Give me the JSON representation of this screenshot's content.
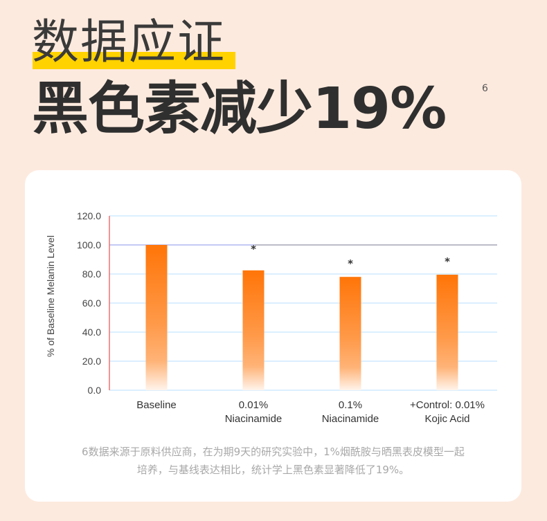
{
  "header": {
    "subtitle": "数据应证",
    "title": "黑色素减少19%",
    "footnote_ref": "6",
    "highlight_color": "#ffd200"
  },
  "chart_data": {
    "type": "bar",
    "ylabel": "% of Baseline Melanin Level",
    "ylim": [
      0,
      120
    ],
    "yticks": [
      "0.0",
      "20.0",
      "40.0",
      "60.0",
      "80.0",
      "100.0",
      "120.0"
    ],
    "categories": [
      [
        "Baseline"
      ],
      [
        "0.01%",
        "Niacinamide"
      ],
      [
        "0.1%",
        "Niacinamide"
      ],
      [
        "+Control: 0.01%",
        "Kojic Acid"
      ]
    ],
    "values": [
      100,
      82.5,
      78,
      79.5
    ],
    "significance": [
      "",
      "*",
      "*",
      "*"
    ],
    "bar_color": "#ff7a10",
    "grid": true
  },
  "footnote": {
    "lines": [
      "6数据来源于原料供应商，在为期9天的研究实验中，1%烟酰胺与晒黑表皮模型一起",
      "培养，与基线表达相比，统计学上黑色素显著降低了19%。"
    ]
  }
}
